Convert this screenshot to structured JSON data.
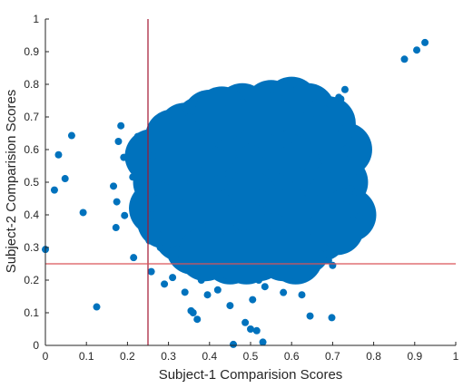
{
  "chart_data": {
    "type": "scatter",
    "xlabel": "Subject-1 Comparision Scores",
    "ylabel": "Subject-2 Comparision Scores",
    "xlim": [
      0,
      1
    ],
    "ylim": [
      0,
      1
    ],
    "xticks": [
      0,
      0.1,
      0.2,
      0.3,
      0.4,
      0.5,
      0.6,
      0.7,
      0.8,
      0.9,
      1
    ],
    "yticks": [
      0,
      0.1,
      0.2,
      0.3,
      0.4,
      0.5,
      0.6,
      0.7,
      0.8,
      0.9,
      1
    ],
    "xtick_labels": [
      "0",
      "0.1",
      "0.2",
      "0.3",
      "0.4",
      "0.5",
      "0.6",
      "0.7",
      "0.8",
      "0.9",
      "1"
    ],
    "ytick_labels": [
      "0",
      "0.1",
      "0.2",
      "0.3",
      "0.4",
      "0.5",
      "0.6",
      "0.7",
      "0.8",
      "0.9",
      "1"
    ],
    "grid": false,
    "point_color": "#0072BD",
    "threshold_lines": [
      {
        "orientation": "vertical",
        "value": 0.25,
        "color": "#A2142F"
      },
      {
        "orientation": "horizontal",
        "value": 0.25,
        "color": "#D95359"
      }
    ],
    "dense_cluster": {
      "points": [
        [
          0.47,
          0.5
        ],
        [
          0.52,
          0.5
        ],
        [
          0.57,
          0.5
        ],
        [
          0.42,
          0.5
        ],
        [
          0.62,
          0.5
        ],
        [
          0.37,
          0.5
        ],
        [
          0.67,
          0.5
        ],
        [
          0.32,
          0.5
        ],
        [
          0.5,
          0.55
        ],
        [
          0.5,
          0.45
        ],
        [
          0.5,
          0.6
        ],
        [
          0.5,
          0.4
        ],
        [
          0.5,
          0.65
        ],
        [
          0.5,
          0.35
        ],
        [
          0.5,
          0.7
        ],
        [
          0.5,
          0.3
        ],
        [
          0.4,
          0.6
        ],
        [
          0.6,
          0.6
        ],
        [
          0.4,
          0.4
        ],
        [
          0.6,
          0.4
        ],
        [
          0.35,
          0.62
        ],
        [
          0.65,
          0.62
        ],
        [
          0.35,
          0.38
        ],
        [
          0.65,
          0.38
        ],
        [
          0.3,
          0.55
        ],
        [
          0.3,
          0.45
        ],
        [
          0.7,
          0.55
        ],
        [
          0.7,
          0.45
        ],
        [
          0.45,
          0.68
        ],
        [
          0.55,
          0.68
        ],
        [
          0.45,
          0.32
        ],
        [
          0.55,
          0.32
        ],
        [
          0.62,
          0.7
        ],
        [
          0.58,
          0.72
        ],
        [
          0.38,
          0.68
        ],
        [
          0.42,
          0.3
        ],
        [
          0.58,
          0.28
        ],
        [
          0.66,
          0.66
        ],
        [
          0.34,
          0.66
        ],
        [
          0.33,
          0.34
        ],
        [
          0.67,
          0.34
        ],
        [
          0.28,
          0.5
        ],
        [
          0.72,
          0.5
        ],
        [
          0.6,
          0.74
        ],
        [
          0.48,
          0.72
        ],
        [
          0.52,
          0.28
        ],
        [
          0.45,
          0.27
        ],
        [
          0.63,
          0.3
        ],
        [
          0.27,
          0.42
        ],
        [
          0.73,
          0.6
        ],
        [
          0.74,
          0.4
        ],
        [
          0.26,
          0.58
        ],
        [
          0.4,
          0.7
        ],
        [
          0.64,
          0.72
        ],
        [
          0.36,
          0.3
        ],
        [
          0.69,
          0.68
        ],
        [
          0.31,
          0.64
        ],
        [
          0.71,
          0.36
        ],
        [
          0.29,
          0.38
        ],
        [
          0.55,
          0.73
        ],
        [
          0.43,
          0.71
        ],
        [
          0.49,
          0.27
        ],
        [
          0.61,
          0.27
        ],
        [
          0.39,
          0.28
        ]
      ]
    },
    "scatter_points": [
      [
        0.0,
        0.294
      ],
      [
        0.022,
        0.476
      ],
      [
        0.032,
        0.584
      ],
      [
        0.048,
        0.511
      ],
      [
        0.064,
        0.643
      ],
      [
        0.092,
        0.407
      ],
      [
        0.125,
        0.118
      ],
      [
        0.215,
        0.269
      ],
      [
        0.184,
        0.673
      ],
      [
        0.178,
        0.625
      ],
      [
        0.191,
        0.576
      ],
      [
        0.166,
        0.488
      ],
      [
        0.174,
        0.44
      ],
      [
        0.172,
        0.361
      ],
      [
        0.193,
        0.398
      ],
      [
        0.225,
        0.64
      ],
      [
        0.213,
        0.516
      ],
      [
        0.256,
        0.548
      ],
      [
        0.253,
        0.321
      ],
      [
        0.258,
        0.226
      ],
      [
        0.29,
        0.188
      ],
      [
        0.31,
        0.208
      ],
      [
        0.34,
        0.163
      ],
      [
        0.355,
        0.106
      ],
      [
        0.36,
        0.1
      ],
      [
        0.37,
        0.08
      ],
      [
        0.395,
        0.155
      ],
      [
        0.38,
        0.2
      ],
      [
        0.42,
        0.17
      ],
      [
        0.45,
        0.122
      ],
      [
        0.458,
        0.003
      ],
      [
        0.487,
        0.07
      ],
      [
        0.5,
        0.05
      ],
      [
        0.515,
        0.045
      ],
      [
        0.53,
        0.01
      ],
      [
        0.505,
        0.14
      ],
      [
        0.535,
        0.18
      ],
      [
        0.58,
        0.162
      ],
      [
        0.61,
        0.21
      ],
      [
        0.625,
        0.155
      ],
      [
        0.645,
        0.09
      ],
      [
        0.698,
        0.085
      ],
      [
        0.66,
        0.27
      ],
      [
        0.7,
        0.245
      ],
      [
        0.72,
        0.302
      ],
      [
        0.74,
        0.33
      ],
      [
        0.75,
        0.385
      ],
      [
        0.765,
        0.395
      ],
      [
        0.752,
        0.452
      ],
      [
        0.74,
        0.57
      ],
      [
        0.735,
        0.603
      ],
      [
        0.762,
        0.622
      ],
      [
        0.72,
        0.665
      ],
      [
        0.715,
        0.76
      ],
      [
        0.73,
        0.784
      ],
      [
        0.72,
        0.755
      ],
      [
        0.875,
        0.877
      ],
      [
        0.905,
        0.905
      ],
      [
        0.925,
        0.928
      ],
      [
        0.58,
        0.755
      ],
      [
        0.6,
        0.74
      ],
      [
        0.35,
        0.7
      ],
      [
        0.3,
        0.69
      ],
      [
        0.4,
        0.72
      ],
      [
        0.27,
        0.66
      ],
      [
        0.265,
        0.62
      ],
      [
        0.262,
        0.58
      ],
      [
        0.68,
        0.725
      ],
      [
        0.66,
        0.71
      ],
      [
        0.55,
        0.765
      ],
      [
        0.48,
        0.745
      ],
      [
        0.43,
        0.735
      ],
      [
        0.33,
        0.25
      ],
      [
        0.37,
        0.24
      ],
      [
        0.42,
        0.23
      ],
      [
        0.48,
        0.23
      ],
      [
        0.55,
        0.228
      ],
      [
        0.63,
        0.225
      ],
      [
        0.52,
        0.2
      ],
      [
        0.44,
        0.215
      ],
      [
        0.62,
        0.25
      ],
      [
        0.69,
        0.26
      ],
      [
        0.28,
        0.3
      ],
      [
        0.275,
        0.34
      ],
      [
        0.26,
        0.4
      ],
      [
        0.265,
        0.47
      ],
      [
        0.745,
        0.48
      ],
      [
        0.75,
        0.53
      ],
      [
        0.68,
        0.3
      ],
      [
        0.71,
        0.32
      ]
    ]
  }
}
